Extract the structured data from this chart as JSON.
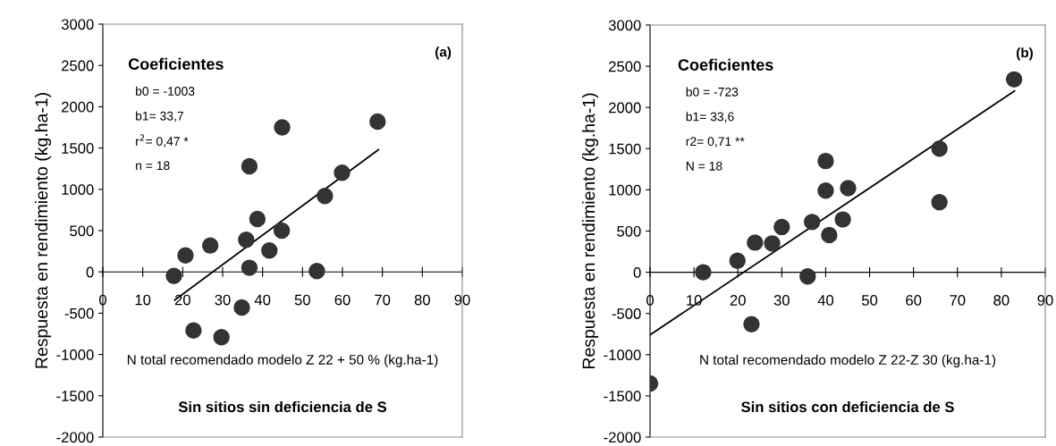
{
  "chart_data": [
    {
      "type": "scatter",
      "ylabel": "Respuesta en rendimiento (kg.ha-1)",
      "xlabel": "N total recomendado modelo Z 22 + 50 % (kg.ha-1)",
      "annotations": [
        "Coeficientes",
        "b0 = -1003",
        "b1= 33,7",
        "r$^{2}$= 0,47 *",
        "n = 18",
        "(a)",
        "Sin sitios sin deficiencia de S"
      ],
      "xlim": [
        0,
        90
      ],
      "xticks": [
        0,
        10,
        20,
        30,
        40,
        50,
        60,
        70,
        80,
        90
      ],
      "ylim": [
        -2000,
        3000
      ],
      "yticks": [
        -2000,
        -1500,
        -1000,
        -500,
        0,
        500,
        1000,
        1500,
        2000,
        2500,
        3000
      ],
      "grid": false,
      "legend": false,
      "series": [
        {
          "marker": "circle",
          "color": "#333333",
          "x": [
            17.8,
            20.7,
            26.9,
            35.9,
            36.7,
            36.7,
            38.7,
            41.7,
            44.9,
            44.8,
            53.6,
            55.6,
            59.9,
            68.8,
            34.8,
            22.7,
            29.7
          ],
          "values": [
            -50,
            200,
            320,
            390,
            1280,
            50,
            640,
            260,
            1750,
            500,
            10,
            920,
            1200,
            1820,
            -430,
            -710,
            -790
          ]
        },
        {
          "type": "line",
          "color": "#000000",
          "x": [
            18,
            69
          ],
          "values": [
            -340,
            1480
          ]
        }
      ]
    },
    {
      "type": "scatter",
      "ylabel": "Respuesta en rendimiento (kg.ha-1)",
      "xlabel": "N total recomendado modelo Z 22-Z 30 (kg.ha-1)",
      "annotations": [
        "Coeficientes",
        "b0 = -723",
        "b1= 33,6",
        "r2= 0,71 **",
        "N = 18",
        "(b)",
        "Sin sitios con deficiencia de S"
      ],
      "xlim": [
        0,
        90
      ],
      "xticks": [
        0,
        10,
        20,
        30,
        40,
        50,
        60,
        70,
        80,
        90
      ],
      "ylim": [
        -2000,
        3000
      ],
      "yticks": [
        -2000,
        -1500,
        -1000,
        -500,
        0,
        500,
        1000,
        1500,
        2000,
        2500,
        3000
      ],
      "grid": false,
      "legend": false,
      "series": [
        {
          "marker": "circle",
          "color": "#333333",
          "x": [
            0,
            12.1,
            19.9,
            23.1,
            23.9,
            27.8,
            30,
            35.9,
            36.9,
            40,
            40,
            40.8,
            43.9,
            45.1,
            65.9,
            65.9,
            82.9
          ],
          "values": [
            -1350,
            0,
            140,
            -630,
            360,
            350,
            550,
            -50,
            610,
            1350,
            990,
            450,
            640,
            1020,
            1500,
            850,
            2340
          ]
        },
        {
          "type": "line",
          "color": "#000000",
          "x": [
            0,
            83
          ],
          "values": [
            -760,
            2200
          ]
        }
      ]
    }
  ]
}
